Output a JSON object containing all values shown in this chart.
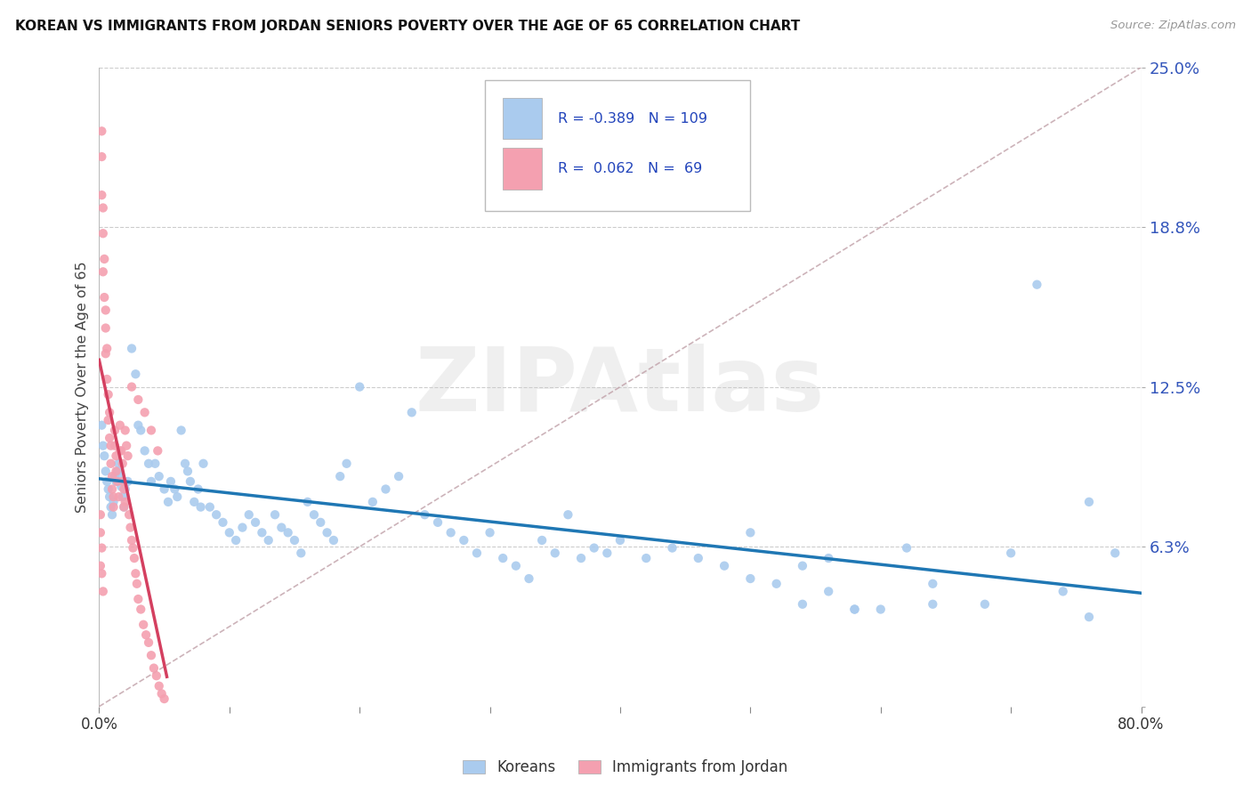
{
  "title": "KOREAN VS IMMIGRANTS FROM JORDAN SENIORS POVERTY OVER THE AGE OF 65 CORRELATION CHART",
  "source": "Source: ZipAtlas.com",
  "ylabel": "Seniors Poverty Over the Age of 65",
  "xlim": [
    0.0,
    0.8
  ],
  "ylim": [
    0.0,
    0.25
  ],
  "yticks": [
    0.0,
    0.0625,
    0.125,
    0.1875,
    0.25
  ],
  "ytick_labels": [
    "",
    "6.3%",
    "12.5%",
    "18.8%",
    "25.0%"
  ],
  "color_korean": "#AACBEE",
  "color_jordan": "#F4A0B0",
  "color_korean_line": "#1F77B4",
  "color_jordan_line": "#D44060",
  "color_ref_line": "#C0A0A8",
  "watermark": "ZIPAtlas",
  "background_color": "#FFFFFF",
  "legend_r_korean": "-0.389",
  "legend_n_korean": "109",
  "legend_r_jordan": "0.062",
  "legend_n_jordan": "69",
  "korean_x": [
    0.002,
    0.003,
    0.004,
    0.005,
    0.006,
    0.007,
    0.008,
    0.009,
    0.01,
    0.011,
    0.012,
    0.013,
    0.014,
    0.015,
    0.016,
    0.017,
    0.018,
    0.019,
    0.02,
    0.022,
    0.025,
    0.028,
    0.03,
    0.032,
    0.035,
    0.038,
    0.04,
    0.043,
    0.046,
    0.05,
    0.053,
    0.055,
    0.058,
    0.06,
    0.063,
    0.066,
    0.068,
    0.07,
    0.073,
    0.076,
    0.078,
    0.08,
    0.085,
    0.09,
    0.095,
    0.1,
    0.105,
    0.11,
    0.115,
    0.12,
    0.125,
    0.13,
    0.135,
    0.14,
    0.145,
    0.15,
    0.155,
    0.16,
    0.165,
    0.17,
    0.175,
    0.18,
    0.185,
    0.19,
    0.2,
    0.21,
    0.22,
    0.23,
    0.24,
    0.25,
    0.26,
    0.27,
    0.28,
    0.29,
    0.3,
    0.31,
    0.32,
    0.33,
    0.34,
    0.35,
    0.36,
    0.37,
    0.38,
    0.39,
    0.4,
    0.42,
    0.44,
    0.46,
    0.48,
    0.5,
    0.52,
    0.54,
    0.56,
    0.58,
    0.6,
    0.64,
    0.68,
    0.72,
    0.76,
    0.78,
    0.5,
    0.54,
    0.56,
    0.58,
    0.62,
    0.64,
    0.7,
    0.74,
    0.76
  ],
  "korean_y": [
    0.11,
    0.102,
    0.098,
    0.092,
    0.088,
    0.085,
    0.082,
    0.078,
    0.075,
    0.08,
    0.09,
    0.088,
    0.092,
    0.095,
    0.09,
    0.086,
    0.082,
    0.078,
    0.085,
    0.088,
    0.14,
    0.13,
    0.11,
    0.108,
    0.1,
    0.095,
    0.088,
    0.095,
    0.09,
    0.085,
    0.08,
    0.088,
    0.085,
    0.082,
    0.108,
    0.095,
    0.092,
    0.088,
    0.08,
    0.085,
    0.078,
    0.095,
    0.078,
    0.075,
    0.072,
    0.068,
    0.065,
    0.07,
    0.075,
    0.072,
    0.068,
    0.065,
    0.075,
    0.07,
    0.068,
    0.065,
    0.06,
    0.08,
    0.075,
    0.072,
    0.068,
    0.065,
    0.09,
    0.095,
    0.125,
    0.08,
    0.085,
    0.09,
    0.115,
    0.075,
    0.072,
    0.068,
    0.065,
    0.06,
    0.068,
    0.058,
    0.055,
    0.05,
    0.065,
    0.06,
    0.075,
    0.058,
    0.062,
    0.06,
    0.065,
    0.058,
    0.062,
    0.058,
    0.055,
    0.05,
    0.048,
    0.055,
    0.045,
    0.038,
    0.038,
    0.04,
    0.04,
    0.165,
    0.08,
    0.06,
    0.068,
    0.04,
    0.058,
    0.038,
    0.062,
    0.048,
    0.06,
    0.045,
    0.035
  ],
  "jordan_x": [
    0.002,
    0.002,
    0.002,
    0.003,
    0.003,
    0.003,
    0.004,
    0.004,
    0.005,
    0.005,
    0.005,
    0.006,
    0.006,
    0.007,
    0.007,
    0.008,
    0.008,
    0.009,
    0.009,
    0.01,
    0.01,
    0.011,
    0.011,
    0.012,
    0.012,
    0.013,
    0.013,
    0.014,
    0.015,
    0.016,
    0.016,
    0.017,
    0.018,
    0.018,
    0.019,
    0.019,
    0.02,
    0.02,
    0.021,
    0.022,
    0.023,
    0.024,
    0.025,
    0.026,
    0.027,
    0.028,
    0.029,
    0.03,
    0.032,
    0.034,
    0.036,
    0.038,
    0.04,
    0.042,
    0.044,
    0.046,
    0.048,
    0.05,
    0.025,
    0.03,
    0.035,
    0.04,
    0.045,
    0.001,
    0.001,
    0.001,
    0.002,
    0.002,
    0.003
  ],
  "jordan_y": [
    0.225,
    0.215,
    0.2,
    0.195,
    0.185,
    0.17,
    0.175,
    0.16,
    0.155,
    0.148,
    0.138,
    0.14,
    0.128,
    0.122,
    0.112,
    0.115,
    0.105,
    0.102,
    0.095,
    0.09,
    0.085,
    0.082,
    0.078,
    0.108,
    0.102,
    0.098,
    0.092,
    0.088,
    0.082,
    0.11,
    0.1,
    0.1,
    0.095,
    0.088,
    0.085,
    0.078,
    0.08,
    0.108,
    0.102,
    0.098,
    0.075,
    0.07,
    0.065,
    0.062,
    0.058,
    0.052,
    0.048,
    0.042,
    0.038,
    0.032,
    0.028,
    0.025,
    0.02,
    0.015,
    0.012,
    0.008,
    0.005,
    0.003,
    0.125,
    0.12,
    0.115,
    0.108,
    0.1,
    0.075,
    0.068,
    0.055,
    0.062,
    0.052,
    0.045
  ]
}
